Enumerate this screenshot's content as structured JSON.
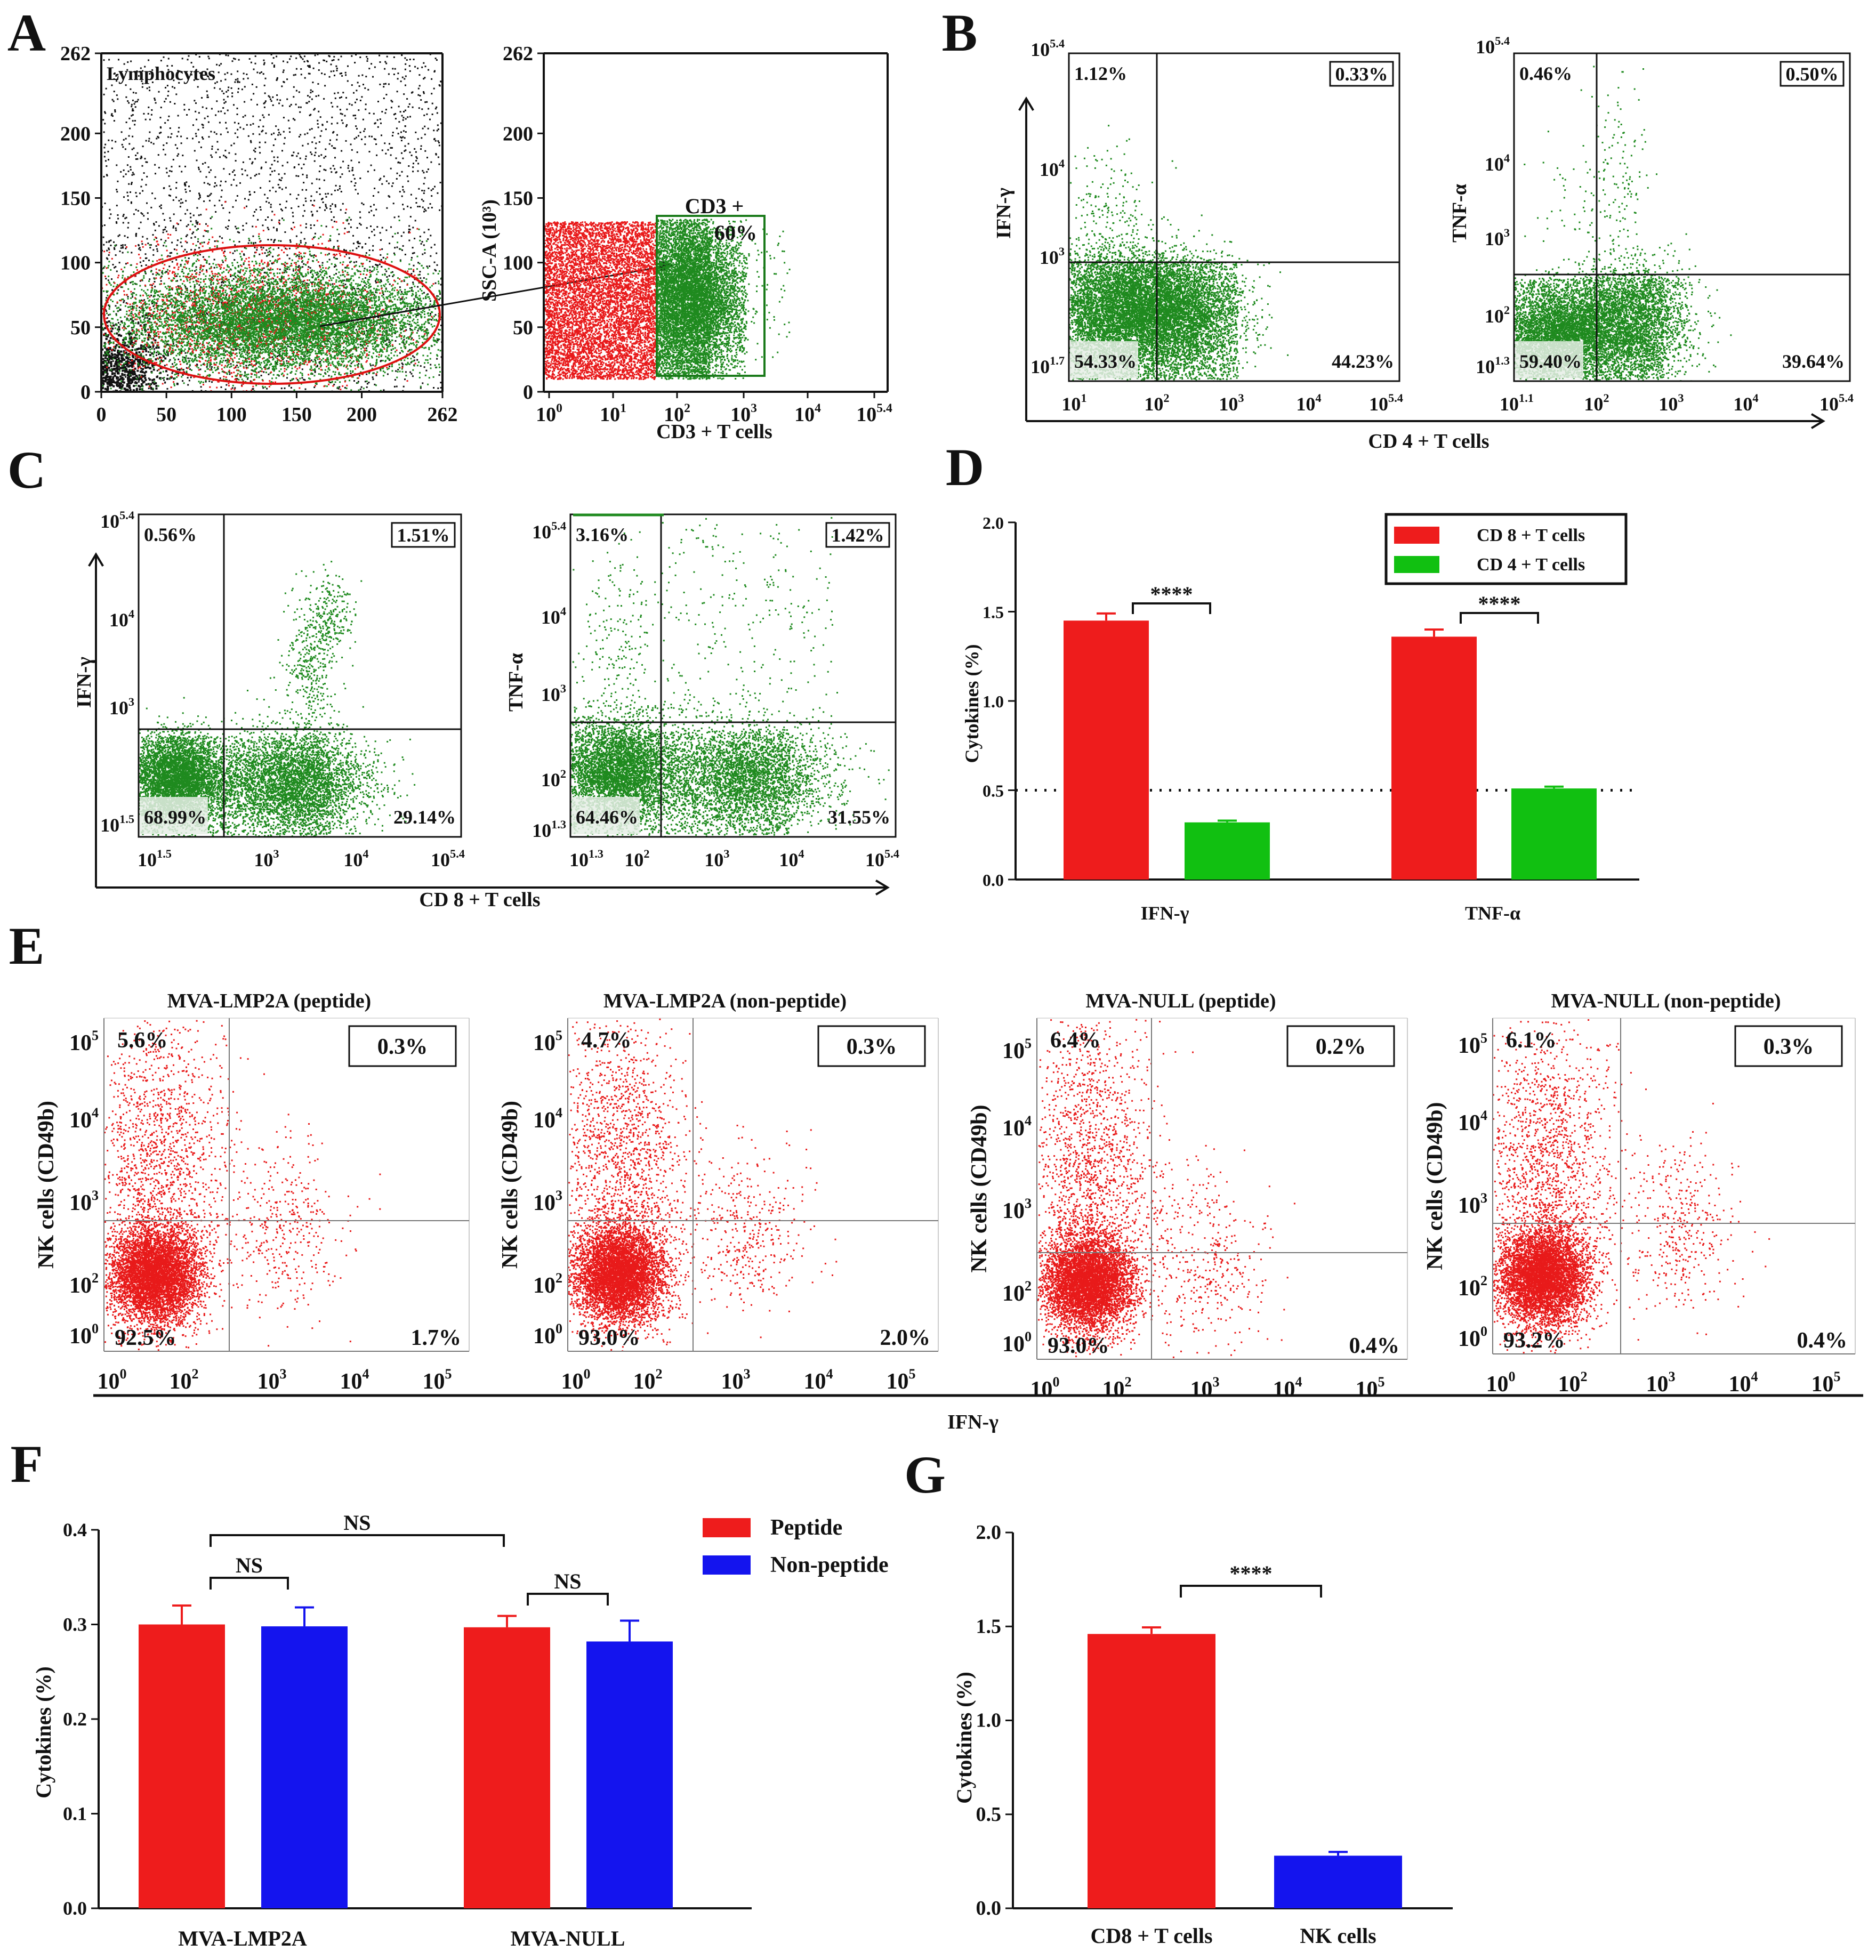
{
  "figure": {
    "panel_letters": [
      "A",
      "B",
      "C",
      "D",
      "E",
      "F",
      "G"
    ]
  },
  "chart_data": [
    {
      "id": "A1",
      "type": "scatter",
      "title": "",
      "gate_label": "Lymphocytes",
      "x_ticks": [
        "0",
        "50",
        "100",
        "150",
        "200",
        "262"
      ],
      "y_ticks": [
        "0",
        "50",
        "100",
        "150",
        "200",
        "262"
      ],
      "xlim": [
        0,
        262
      ],
      "ylim": [
        0,
        262
      ],
      "colors": {
        "black": "#111111",
        "red": "#e8191a",
        "green": "#1f8a1f"
      }
    },
    {
      "id": "A2",
      "type": "scatter",
      "xlabel": "CD3 + T cells",
      "ylabel": "SSC-A (10³)",
      "x_ticks": [
        {
          "base": "10",
          "exp": "0"
        },
        {
          "base": "10",
          "exp": "1"
        },
        {
          "base": "10",
          "exp": "2"
        },
        {
          "base": "10",
          "exp": "3"
        },
        {
          "base": "10",
          "exp": "4"
        },
        {
          "base": "10",
          "exp": "5.4"
        }
      ],
      "y_ticks": [
        "0",
        "50",
        "100",
        "150",
        "200",
        "262"
      ],
      "gate_label": "CD3 +",
      "gate_value": "60%"
    },
    {
      "id": "B",
      "type": "scatter",
      "shared_xlabel": "CD 4 + T cells",
      "plots": [
        {
          "ylabel": "IFN-γ",
          "quadrants": {
            "ul": "1.12%",
            "ur": "0.33%",
            "ll": "54.33%",
            "lr": "44.23%"
          },
          "x_ticks": [
            {
              "base": "10",
              "exp": "1"
            },
            {
              "base": "10",
              "exp": "2"
            },
            {
              "base": "10",
              "exp": "3"
            },
            {
              "base": "10",
              "exp": "4"
            },
            {
              "base": "10",
              "exp": "5.4"
            }
          ],
          "y_ticks": [
            {
              "base": "10",
              "exp": "1.7"
            },
            {
              "base": "10",
              "exp": "3"
            },
            {
              "base": "10",
              "exp": "4"
            },
            {
              "base": "10",
              "exp": "5.4"
            }
          ]
        },
        {
          "ylabel": "TNF-α",
          "quadrants": {
            "ul": "0.46%",
            "ur": "0.50%",
            "ll": "59.40%",
            "lr": "39.64%"
          },
          "x_ticks": [
            {
              "base": "10",
              "exp": "1.1"
            },
            {
              "base": "10",
              "exp": "2"
            },
            {
              "base": "10",
              "exp": "3"
            },
            {
              "base": "10",
              "exp": "4"
            },
            {
              "base": "10",
              "exp": "5.4"
            }
          ],
          "y_ticks": [
            {
              "base": "10",
              "exp": "1.3"
            },
            {
              "base": "10",
              "exp": "2"
            },
            {
              "base": "10",
              "exp": "3"
            },
            {
              "base": "10",
              "exp": "4"
            },
            {
              "base": "10",
              "exp": "5.4"
            }
          ]
        }
      ]
    },
    {
      "id": "C",
      "type": "scatter",
      "shared_xlabel": "CD 8 + T cells",
      "plots": [
        {
          "ylabel": "IFN-γ",
          "quadrants": {
            "ul": "0.56%",
            "ur": "1.51%",
            "ll": "68.99%",
            "lr": "29.14%"
          },
          "x_ticks": [
            {
              "base": "10",
              "exp": "1.5"
            },
            {
              "base": "10",
              "exp": "3"
            },
            {
              "base": "10",
              "exp": "4"
            },
            {
              "base": "10",
              "exp": "5.4"
            }
          ],
          "y_ticks": [
            {
              "base": "10",
              "exp": "1.5"
            },
            {
              "base": "10",
              "exp": "3"
            },
            {
              "base": "10",
              "exp": "4"
            },
            {
              "base": "10",
              "exp": "5.4"
            }
          ]
        },
        {
          "ylabel": "TNF-α",
          "quadrants": {
            "ul": "3.16%",
            "ur": "1.42%",
            "ll": "64.46%",
            "lr": "31.55%"
          },
          "x_ticks": [
            {
              "base": "10",
              "exp": "1.3"
            },
            {
              "base": "10",
              "exp": "2"
            },
            {
              "base": "10",
              "exp": "3"
            },
            {
              "base": "10",
              "exp": "4"
            },
            {
              "base": "10",
              "exp": "5.4"
            }
          ],
          "y_ticks": [
            {
              "base": "10",
              "exp": "1.3"
            },
            {
              "base": "10",
              "exp": "2"
            },
            {
              "base": "10",
              "exp": "3"
            },
            {
              "base": "10",
              "exp": "4"
            },
            {
              "base": "10",
              "exp": "5.4"
            }
          ]
        }
      ]
    },
    {
      "id": "D",
      "type": "bar",
      "categories": [
        "IFN-γ",
        "TNF-α"
      ],
      "series": [
        {
          "name": "CD 8 + T cells",
          "color": "#ee1c1c",
          "values": [
            1.45,
            1.36
          ],
          "errors": [
            0.04,
            0.04
          ]
        },
        {
          "name": "CD 4 + T cells",
          "color": "#11c011",
          "values": [
            0.32,
            0.51
          ],
          "errors": [
            0.01,
            0.01
          ]
        }
      ],
      "ylabel": "Cytokines (%)",
      "ylim": [
        0,
        2.0
      ],
      "y_ticks": [
        "0.0",
        "0.5",
        "1.0",
        "1.5",
        "2.0"
      ],
      "reference_line": 0.5,
      "significance": [
        "****",
        "****"
      ]
    },
    {
      "id": "E",
      "type": "scatter",
      "shared_xlabel": "IFN-γ",
      "plots": [
        {
          "title": "MVA-LMP2A (peptide)",
          "ylabel": "NK cells (CD49b)",
          "quadrants": {
            "ul": "5.6%",
            "ur": "0.3%",
            "ll": "92.5%",
            "lr": "1.7%"
          }
        },
        {
          "title": "MVA-LMP2A (non-peptide)",
          "ylabel": "NK cells (CD49b)",
          "quadrants": {
            "ul": "4.7%",
            "ur": "0.3%",
            "ll": "93.0%",
            "lr": "2.0%"
          }
        },
        {
          "title": "MVA-NULL (peptide)",
          "ylabel": "NK cells (CD49b)",
          "quadrants": {
            "ul": "6.4%",
            "ur": "0.2%",
            "ll": "93.0%",
            "lr": "0.4%"
          }
        },
        {
          "title": "MVA-NULL (non-peptide)",
          "ylabel": "NK cells (CD49b)",
          "quadrants": {
            "ul": "6.1%",
            "ur": "0.3%",
            "ll": "93.2%",
            "lr": "0.4%"
          }
        }
      ],
      "x_ticks": [
        {
          "base": "10",
          "exp": "0"
        },
        {
          "base": "10",
          "exp": "2"
        },
        {
          "base": "10",
          "exp": "3"
        },
        {
          "base": "10",
          "exp": "4"
        },
        {
          "base": "10",
          "exp": "5"
        }
      ],
      "y_ticks": [
        {
          "base": "10",
          "exp": "0"
        },
        {
          "base": "10",
          "exp": "2"
        },
        {
          "base": "10",
          "exp": "3"
        },
        {
          "base": "10",
          "exp": "4"
        },
        {
          "base": "10",
          "exp": "5"
        }
      ]
    },
    {
      "id": "F",
      "type": "bar",
      "categories": [
        "MVA-LMP2A",
        "MVA-NULL"
      ],
      "series": [
        {
          "name": "Peptide",
          "color": "#ee1c1c",
          "values": [
            0.3,
            0.297
          ],
          "errors": [
            0.02,
            0.012
          ]
        },
        {
          "name": "Non-peptide",
          "color": "#1414ee",
          "values": [
            0.298,
            0.282
          ],
          "errors": [
            0.02,
            0.022
          ]
        }
      ],
      "ylabel": "Cytokines (%)",
      "ylim": [
        0,
        0.4
      ],
      "y_ticks": [
        "0.0",
        "0.1",
        "0.2",
        "0.3",
        "0.4"
      ],
      "significance": [
        "NS",
        "NS",
        "NS"
      ]
    },
    {
      "id": "G",
      "type": "bar",
      "categories": [
        "CD8 + T cells",
        "NK cells"
      ],
      "values": [
        1.46,
        0.28
      ],
      "errors": [
        0.035,
        0.02
      ],
      "colors": [
        "#ee1c1c",
        "#1414ee"
      ],
      "ylabel": "Cytokines (%)",
      "ylim": [
        0,
        2.0
      ],
      "y_ticks": [
        "0.0",
        "0.5",
        "1.0",
        "1.5",
        "2.0"
      ],
      "significance": "****"
    }
  ]
}
